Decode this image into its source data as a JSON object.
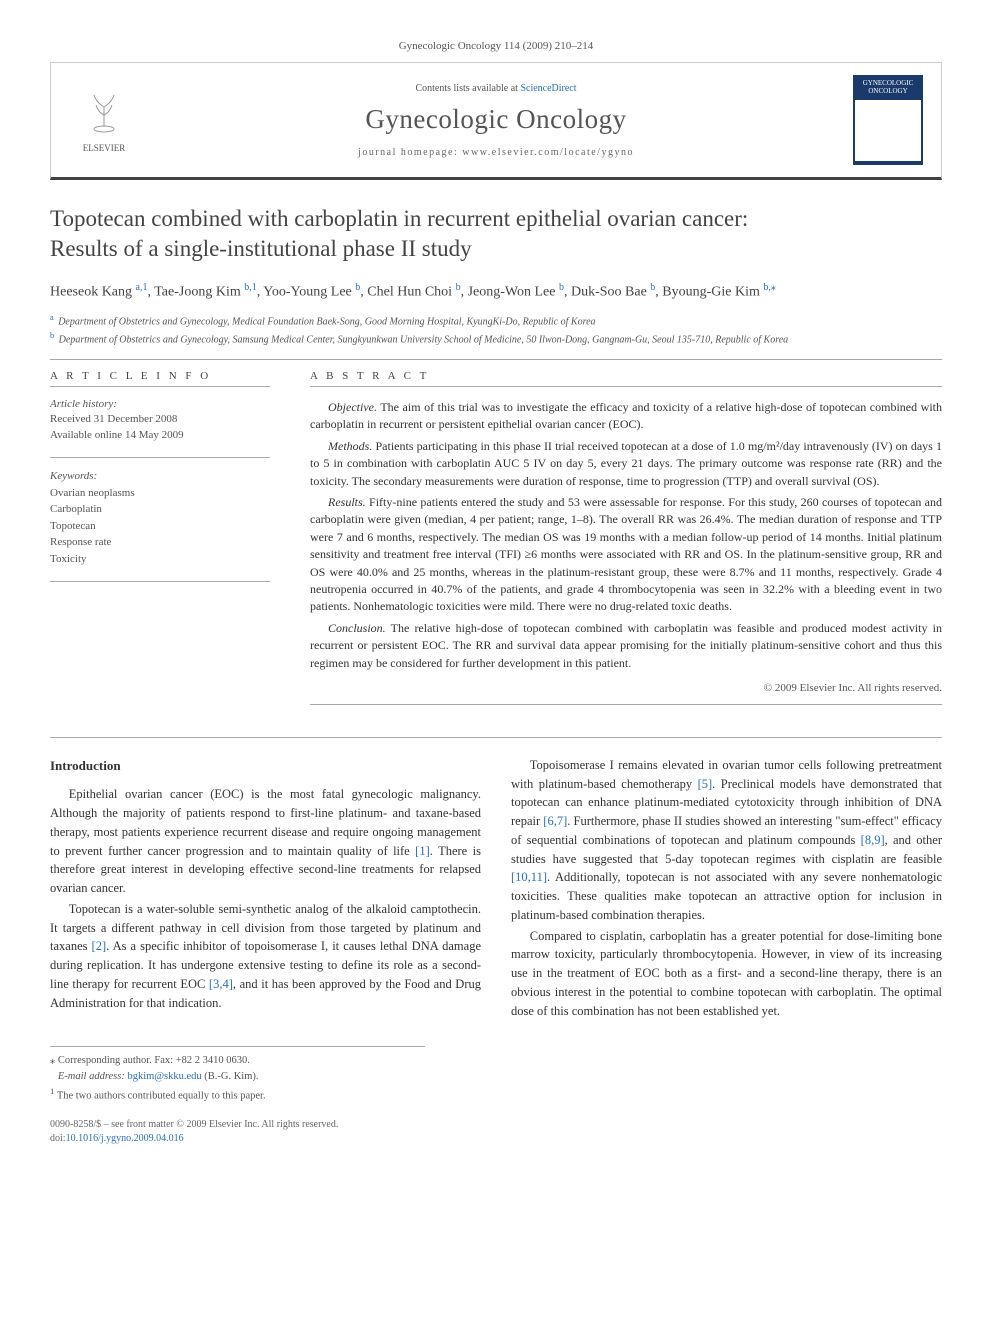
{
  "journal_cite": "Gynecologic Oncology 114 (2009) 210–214",
  "header": {
    "publisher_name": "ELSEVIER",
    "contents_prefix": "Contents lists available at ",
    "contents_link_text": "ScienceDirect",
    "journal_name": "Gynecologic Oncology",
    "homepage_prefix": "journal homepage: ",
    "homepage_url": "www.elsevier.com/locate/ygyno",
    "cover_text": "GYNECOLOGIC ONCOLOGY"
  },
  "title_line1": "Topotecan combined with carboplatin in recurrent epithelial ovarian cancer:",
  "title_line2": "Results of a single-institutional phase II study",
  "authors_html": "Heeseok Kang <sup><a>a,1</a></sup>, Tae-Joong Kim <sup><a>b,1</a></sup>, Yoo-Young Lee <sup><a>b</a></sup>, Chel Hun Choi <sup><a>b</a></sup>, Jeong-Won Lee <sup><a>b</a></sup>, Duk-Soo Bae <sup><a>b</a></sup>, Byoung-Gie Kim <sup><a>b,</a></sup><sup><a>⁎</a></sup>",
  "affiliations": {
    "a": "Department of Obstetrics and Gynecology, Medical Foundation Baek-Song, Good Morning Hospital, KyungKi-Do, Republic of Korea",
    "b": "Department of Obstetrics and Gynecology, Samsung Medical Center, Sungkyunkwan University School of Medicine, 50 Ilwon-Dong, Gangnam-Gu, Seoul 135-710, Republic of Korea"
  },
  "article_info": {
    "head": "A R T I C L E   I N F O",
    "history_label": "Article history:",
    "received": "Received 31 December 2008",
    "online": "Available online 14 May 2009",
    "keywords_label": "Keywords:",
    "keywords": [
      "Ovarian neoplasms",
      "Carboplatin",
      "Topotecan",
      "Response rate",
      "Toxicity"
    ]
  },
  "abstract": {
    "head": "A B S T R A C T",
    "objective_label": "Objective.",
    "objective": "The aim of this trial was to investigate the efficacy and toxicity of a relative high-dose of topotecan combined with carboplatin in recurrent or persistent epithelial ovarian cancer (EOC).",
    "methods_label": "Methods.",
    "methods": "Patients participating in this phase II trial received topotecan at a dose of 1.0 mg/m²/day intravenously (IV) on days 1 to 5 in combination with carboplatin AUC 5 IV on day 5, every 21 days. The primary outcome was response rate (RR) and the toxicity. The secondary measurements were duration of response, time to progression (TTP) and overall survival (OS).",
    "results_label": "Results.",
    "results": "Fifty-nine patients entered the study and 53 were assessable for response. For this study, 260 courses of topotecan and carboplatin were given (median, 4 per patient; range, 1–8). The overall RR was 26.4%. The median duration of response and TTP were 7 and 6 months, respectively. The median OS was 19 months with a median follow-up period of 14 months. Initial platinum sensitivity and treatment free interval (TFI) ≥6 months were associated with RR and OS. In the platinum-sensitive group, RR and OS were 40.0% and 25 months, whereas in the platinum-resistant group, these were 8.7% and 11 months, respectively. Grade 4 neutropenia occurred in 40.7% of the patients, and grade 4 thrombocytopenia was seen in 32.2% with a bleeding event in two patients. Nonhematologic toxicities were mild. There were no drug-related toxic deaths.",
    "conclusion_label": "Conclusion.",
    "conclusion": "The relative high-dose of topotecan combined with carboplatin was feasible and produced modest activity in recurrent or persistent EOC. The RR and survival data appear promising for the initially platinum-sensitive cohort and thus this regimen may be considered for further development in this patient.",
    "copyright": "© 2009 Elsevier Inc. All rights reserved."
  },
  "body": {
    "intro_head": "Introduction",
    "p1": "Epithelial ovarian cancer (EOC) is the most fatal gynecologic malignancy. Although the majority of patients respond to first-line platinum- and taxane-based therapy, most patients experience recurrent disease and require ongoing management to prevent further cancer progression and to maintain quality of life ",
    "p1_ref": "[1]",
    "p1_tail": ". There is therefore great interest in developing effective second-line treatments for relapsed ovarian cancer.",
    "p2": "Topotecan is a water-soluble semi-synthetic analog of the alkaloid camptothecin. It targets a different pathway in cell division from those targeted by platinum and taxanes ",
    "p2_ref": "[2]",
    "p2_tail": ". As a specific inhibitor of topoisomerase I, it causes lethal DNA damage during replication. It has undergone extensive testing to define its role as a second-line therapy",
    "p3_lead": "for recurrent EOC ",
    "p3_ref": "[3,4]",
    "p3_tail": ", and it has been approved by the Food and Drug Administration for that indication.",
    "p4": "Topoisomerase I remains elevated in ovarian tumor cells following pretreatment with platinum-based chemotherapy ",
    "p4_ref1": "[5]",
    "p4_mid1": ". Preclinical models have demonstrated that topotecan can enhance platinum-mediated cytotoxicity through inhibition of DNA repair ",
    "p4_ref2": "[6,7]",
    "p4_mid2": ". Furthermore, phase II studies showed an interesting \"sum-effect\" efficacy of sequential combinations of topotecan and platinum compounds ",
    "p4_ref3": "[8,9]",
    "p4_mid3": ", and other studies have suggested that 5-day topotecan regimes with cisplatin are feasible ",
    "p4_ref4": "[10,11]",
    "p4_tail": ". Additionally, topotecan is not associated with any severe nonhematologic toxicities. These qualities make topotecan an attractive option for inclusion in platinum-based combination therapies.",
    "p5": "Compared to cisplatin, carboplatin has a greater potential for dose-limiting bone marrow toxicity, particularly thrombocytopenia. However, in view of its increasing use in the treatment of EOC both as a first- and a second-line therapy, there is an obvious interest in the potential to combine topotecan with carboplatin. The optimal dose of this combination has not been established yet."
  },
  "footnotes": {
    "corr": "Corresponding author. Fax: +82 2 3410 0630.",
    "email_label": "E-mail address:",
    "email": "bgkim@skku.edu",
    "email_name": "(B.-G. Kim).",
    "note1": "The two authors contributed equally to this paper."
  },
  "bottom": {
    "line1": "0090-8258/$ – see front matter © 2009 Elsevier Inc. All rights reserved.",
    "doi_label": "doi:",
    "doi": "10.1016/j.ygyno.2009.04.016"
  },
  "colors": {
    "link": "#2a6fb5",
    "rule": "#aaaaaa",
    "header_border_bottom": "#424242",
    "cover_bg": "#1a3a6b"
  }
}
